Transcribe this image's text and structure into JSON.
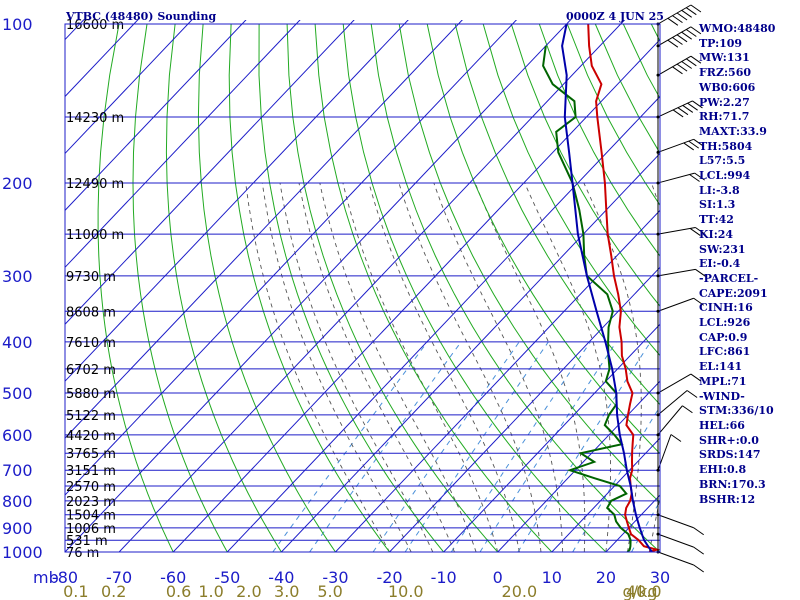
{
  "header": {
    "title": "VTBC (48480) Sounding",
    "time": "0000Z  4 JUN 25"
  },
  "indices": [
    "WMO:48480",
    "TP:109",
    "MW:131",
    "FRZ:560",
    "WB0:606",
    "PW:2.27",
    "RH:71.7",
    "MAXT:33.9",
    "TH:5804",
    "L57:5.5",
    "LCL:994",
    "LI:-3.8",
    "SI:1.3",
    "TT:42",
    "KI:24",
    "SW:231",
    "EI:-0.4",
    "-PARCEL-",
    "CAPE:2091",
    "CINH:16",
    "LCL:926",
    "CAP:0.9",
    "LFC:861",
    "EL:141",
    "MPL:71",
    "-WIND-",
    "STM:336/10",
    "HEL:66",
    "SHR+:0.0",
    "SRDS:147",
    "EHI:0.8",
    "BRN:170.3",
    "BSHR:12"
  ],
  "colors": {
    "grid": "#1c1cc8",
    "dry_adiabat": "#22aa22",
    "moist_adiabat": "#555555",
    "mixing_ratio": "#4a90d9",
    "temperature": "#cc0000",
    "dewpoint": "#006400",
    "parcel": "#0000aa",
    "wind": "#000000"
  },
  "chart_data": {
    "type": "line",
    "title": "VTBC (48480) Sounding",
    "xlabel": "",
    "ylabel": "mb",
    "xlim": [
      -80,
      30
    ],
    "ylim": [
      1000,
      100
    ],
    "y_scale": "log",
    "pressure_ticks": [
      "100",
      "200",
      "300",
      "400",
      "500",
      "600",
      "700",
      "800",
      "900",
      "1000"
    ],
    "pressure_values": [
      100,
      200,
      300,
      400,
      500,
      600,
      700,
      800,
      900,
      1000
    ],
    "temp_ticks": [
      "-80",
      "-70",
      "-60",
      "-50",
      "-40",
      "-30",
      "-20",
      "-10",
      "0",
      "10",
      "20",
      "30"
    ],
    "temp_values": [
      -80,
      -70,
      -60,
      -50,
      -40,
      -30,
      -20,
      -10,
      0,
      10,
      20,
      30
    ],
    "height_labels": [
      {
        "p": 100,
        "label": "16600 m"
      },
      {
        "p": 150,
        "label": "14230 m"
      },
      {
        "p": 200,
        "label": "12490 m"
      },
      {
        "p": 250,
        "label": "11000 m"
      },
      {
        "p": 300,
        "label": "9730 m"
      },
      {
        "p": 350,
        "label": "8608 m"
      },
      {
        "p": 400,
        "label": "7610 m"
      },
      {
        "p": 450,
        "label": "6702 m"
      },
      {
        "p": 500,
        "label": "5880 m"
      },
      {
        "p": 550,
        "label": "5122 m"
      },
      {
        "p": 600,
        "label": "4420 m"
      },
      {
        "p": 650,
        "label": "3765 m"
      },
      {
        "p": 700,
        "label": "3151 m"
      },
      {
        "p": 750,
        "label": "2570 m"
      },
      {
        "p": 800,
        "label": "2023 m"
      },
      {
        "p": 850,
        "label": "1504 m"
      },
      {
        "p": 900,
        "label": "1006 m"
      },
      {
        "p": 950,
        "label": "531 m"
      },
      {
        "p": 1000,
        "label": "76 m"
      }
    ],
    "mixing_ratio_labels": [
      "0.1",
      "0.2",
      "0.6",
      "1.0",
      "2.0",
      "3.0",
      "5.0",
      "10.0",
      "20.0",
      "40.0"
    ],
    "mixing_ratio_positions": [
      -78,
      -71,
      -59,
      -53,
      -46,
      -39,
      -31,
      -17,
      4,
      27
    ],
    "mixing_ratio_unit": "g/kg",
    "isobar_lines": [
      100,
      150,
      200,
      250,
      300,
      350,
      400,
      450,
      500,
      550,
      600,
      650,
      700,
      750,
      800,
      850,
      900,
      950,
      1000
    ],
    "series": [
      {
        "name": "",
        "role": "temperature",
        "points": [
          [
            1000,
            28
          ],
          [
            990,
            29
          ],
          [
            975,
            26
          ],
          [
            950,
            24
          ],
          [
            925,
            21.5
          ],
          [
            900,
            20
          ],
          [
            875,
            18.5
          ],
          [
            850,
            17
          ],
          [
            825,
            16
          ],
          [
            800,
            15.5
          ],
          [
            775,
            14.5
          ],
          [
            750,
            13
          ],
          [
            725,
            11.5
          ],
          [
            700,
            10.5
          ],
          [
            675,
            9
          ],
          [
            650,
            7.5
          ],
          [
            625,
            6
          ],
          [
            600,
            4.5
          ],
          [
            575,
            1.5
          ],
          [
            550,
            0
          ],
          [
            525,
            -1.5
          ],
          [
            500,
            -3
          ],
          [
            475,
            -6
          ],
          [
            450,
            -8.5
          ],
          [
            425,
            -11.5
          ],
          [
            400,
            -14
          ],
          [
            375,
            -17
          ],
          [
            350,
            -19.5
          ],
          [
            325,
            -23
          ],
          [
            300,
            -27
          ],
          [
            275,
            -31
          ],
          [
            250,
            -35.5
          ],
          [
            225,
            -40
          ],
          [
            200,
            -45
          ],
          [
            175,
            -51
          ],
          [
            150,
            -58
          ],
          [
            140,
            -61
          ],
          [
            130,
            -63
          ],
          [
            120,
            -68
          ],
          [
            110,
            -72
          ],
          [
            100,
            -76
          ]
        ]
      },
      {
        "name": "",
        "role": "dewpoint",
        "points": [
          [
            1000,
            24
          ],
          [
            990,
            24
          ],
          [
            975,
            23.5
          ],
          [
            950,
            22.5
          ],
          [
            925,
            21
          ],
          [
            900,
            18.5
          ],
          [
            875,
            16.5
          ],
          [
            850,
            15
          ],
          [
            825,
            12.5
          ],
          [
            800,
            12
          ],
          [
            775,
            13.5
          ],
          [
            750,
            11
          ],
          [
            725,
            5
          ],
          [
            700,
            -1
          ],
          [
            675,
            2
          ],
          [
            650,
            -2
          ],
          [
            625,
            4
          ],
          [
            600,
            1
          ],
          [
            575,
            -2.5
          ],
          [
            550,
            -3.5
          ],
          [
            525,
            -4
          ],
          [
            500,
            -6
          ],
          [
            475,
            -10
          ],
          [
            450,
            -11.5
          ],
          [
            425,
            -14
          ],
          [
            400,
            -16.5
          ],
          [
            375,
            -19
          ],
          [
            350,
            -21
          ],
          [
            325,
            -25
          ],
          [
            300,
            -32
          ],
          [
            275,
            -36
          ],
          [
            250,
            -40
          ],
          [
            225,
            -45
          ],
          [
            200,
            -51
          ],
          [
            175,
            -59
          ],
          [
            160,
            -63
          ],
          [
            150,
            -62
          ],
          [
            140,
            -65
          ],
          [
            130,
            -72
          ],
          [
            120,
            -77
          ],
          [
            110,
            -80
          ]
        ]
      },
      {
        "name": "",
        "role": "parcel",
        "points": [
          [
            1000,
            28.5
          ],
          [
            950,
            25
          ],
          [
            900,
            22
          ],
          [
            850,
            19
          ],
          [
            800,
            16
          ],
          [
            750,
            13
          ],
          [
            700,
            9.5
          ],
          [
            650,
            6
          ],
          [
            600,
            2
          ],
          [
            550,
            -2
          ],
          [
            500,
            -6
          ],
          [
            450,
            -11
          ],
          [
            400,
            -17
          ],
          [
            350,
            -24
          ],
          [
            300,
            -32
          ],
          [
            250,
            -41
          ],
          [
            200,
            -51
          ],
          [
            175,
            -57
          ],
          [
            150,
            -64
          ],
          [
            125,
            -71
          ],
          [
            110,
            -77
          ],
          [
            100,
            -80
          ]
        ]
      }
    ],
    "wind_barbs": [
      {
        "p": 100,
        "dir": 300,
        "spd": 60
      },
      {
        "p": 110,
        "dir": 300,
        "spd": 55
      },
      {
        "p": 125,
        "dir": 300,
        "spd": 50
      },
      {
        "p": 150,
        "dir": 295,
        "spd": 45
      },
      {
        "p": 175,
        "dir": 290,
        "spd": 30
      },
      {
        "p": 200,
        "dir": 285,
        "spd": 20
      },
      {
        "p": 250,
        "dir": 280,
        "spd": 15
      },
      {
        "p": 300,
        "dir": 280,
        "spd": 10
      },
      {
        "p": 350,
        "dir": 290,
        "spd": 10
      },
      {
        "p": 500,
        "dir": 300,
        "spd": 5
      },
      {
        "p": 550,
        "dir": 310,
        "spd": 5
      },
      {
        "p": 600,
        "dir": 320,
        "spd": 5
      },
      {
        "p": 700,
        "dir": 340,
        "spd": 5
      },
      {
        "p": 850,
        "dir": 250,
        "spd": 5
      },
      {
        "p": 925,
        "dir": 250,
        "spd": 10
      },
      {
        "p": 1000,
        "dir": 250,
        "spd": 5
      }
    ]
  }
}
